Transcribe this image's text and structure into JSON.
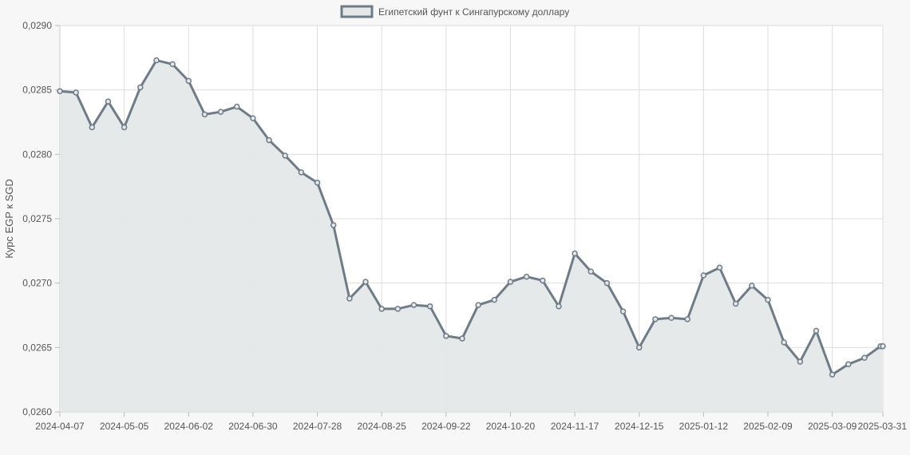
{
  "chart_data": {
    "type": "area",
    "legend": {
      "label": "Египетский фунт к Сингапурскому доллару",
      "placement": "top-center"
    },
    "ylabel": "Курс EGP к SGD",
    "xlabel": "",
    "ylim": [
      0.026,
      0.029
    ],
    "yticks": [
      "0,0260",
      "0,0265",
      "0,0270",
      "0,0275",
      "0,0280",
      "0,0285",
      "0,0290"
    ],
    "xticks": [
      "2024-04-07",
      "2024-05-05",
      "2024-06-02",
      "2024-06-30",
      "2024-07-28",
      "2024-08-25",
      "2024-09-22",
      "2024-10-20",
      "2024-11-17",
      "2024-12-15",
      "2025-01-12",
      "2025-02-09",
      "2025-03-09",
      "2025-03-31"
    ],
    "grid": true,
    "colors": {
      "line": "#6f7c88",
      "fill": "#e5e8e8",
      "grid": "#dddddd"
    },
    "series": [
      {
        "x": [
          "2024-04-07",
          "2024-04-14",
          "2024-04-21",
          "2024-04-28",
          "2024-05-05",
          "2024-05-12",
          "2024-05-19",
          "2024-05-26",
          "2024-06-02",
          "2024-06-09",
          "2024-06-16",
          "2024-06-23",
          "2024-06-30",
          "2024-07-07",
          "2024-07-14",
          "2024-07-21",
          "2024-07-28",
          "2024-08-04",
          "2024-08-11",
          "2024-08-18",
          "2024-08-25",
          "2024-09-01",
          "2024-09-08",
          "2024-09-15",
          "2024-09-22",
          "2024-09-29",
          "2024-10-06",
          "2024-10-13",
          "2024-10-20",
          "2024-10-27",
          "2024-11-03",
          "2024-11-10",
          "2024-11-17",
          "2024-11-24",
          "2024-12-01",
          "2024-12-08",
          "2024-12-15",
          "2024-12-22",
          "2024-12-29",
          "2025-01-05",
          "2025-01-12",
          "2025-01-19",
          "2025-01-26",
          "2025-02-02",
          "2025-02-09",
          "2025-02-16",
          "2025-02-23",
          "2025-03-02",
          "2025-03-09",
          "2025-03-16",
          "2025-03-23",
          "2025-03-30",
          "2025-03-31"
        ],
        "values": [
          0.02849,
          0.02848,
          0.02821,
          0.02841,
          0.02821,
          0.02852,
          0.02873,
          0.0287,
          0.02857,
          0.02831,
          0.02833,
          0.02837,
          0.02828,
          0.02811,
          0.02799,
          0.02786,
          0.02778,
          0.02745,
          0.02688,
          0.02701,
          0.0268,
          0.0268,
          0.02683,
          0.02682,
          0.02659,
          0.02657,
          0.02683,
          0.02687,
          0.02701,
          0.02705,
          0.02702,
          0.02682,
          0.02723,
          0.02709,
          0.027,
          0.02678,
          0.0265,
          0.02672,
          0.02673,
          0.02672,
          0.02706,
          0.02712,
          0.02684,
          0.02698,
          0.02687,
          0.02654,
          0.02639,
          0.02663,
          0.02629,
          0.02637,
          0.02642,
          0.02651,
          0.02651
        ]
      }
    ]
  }
}
